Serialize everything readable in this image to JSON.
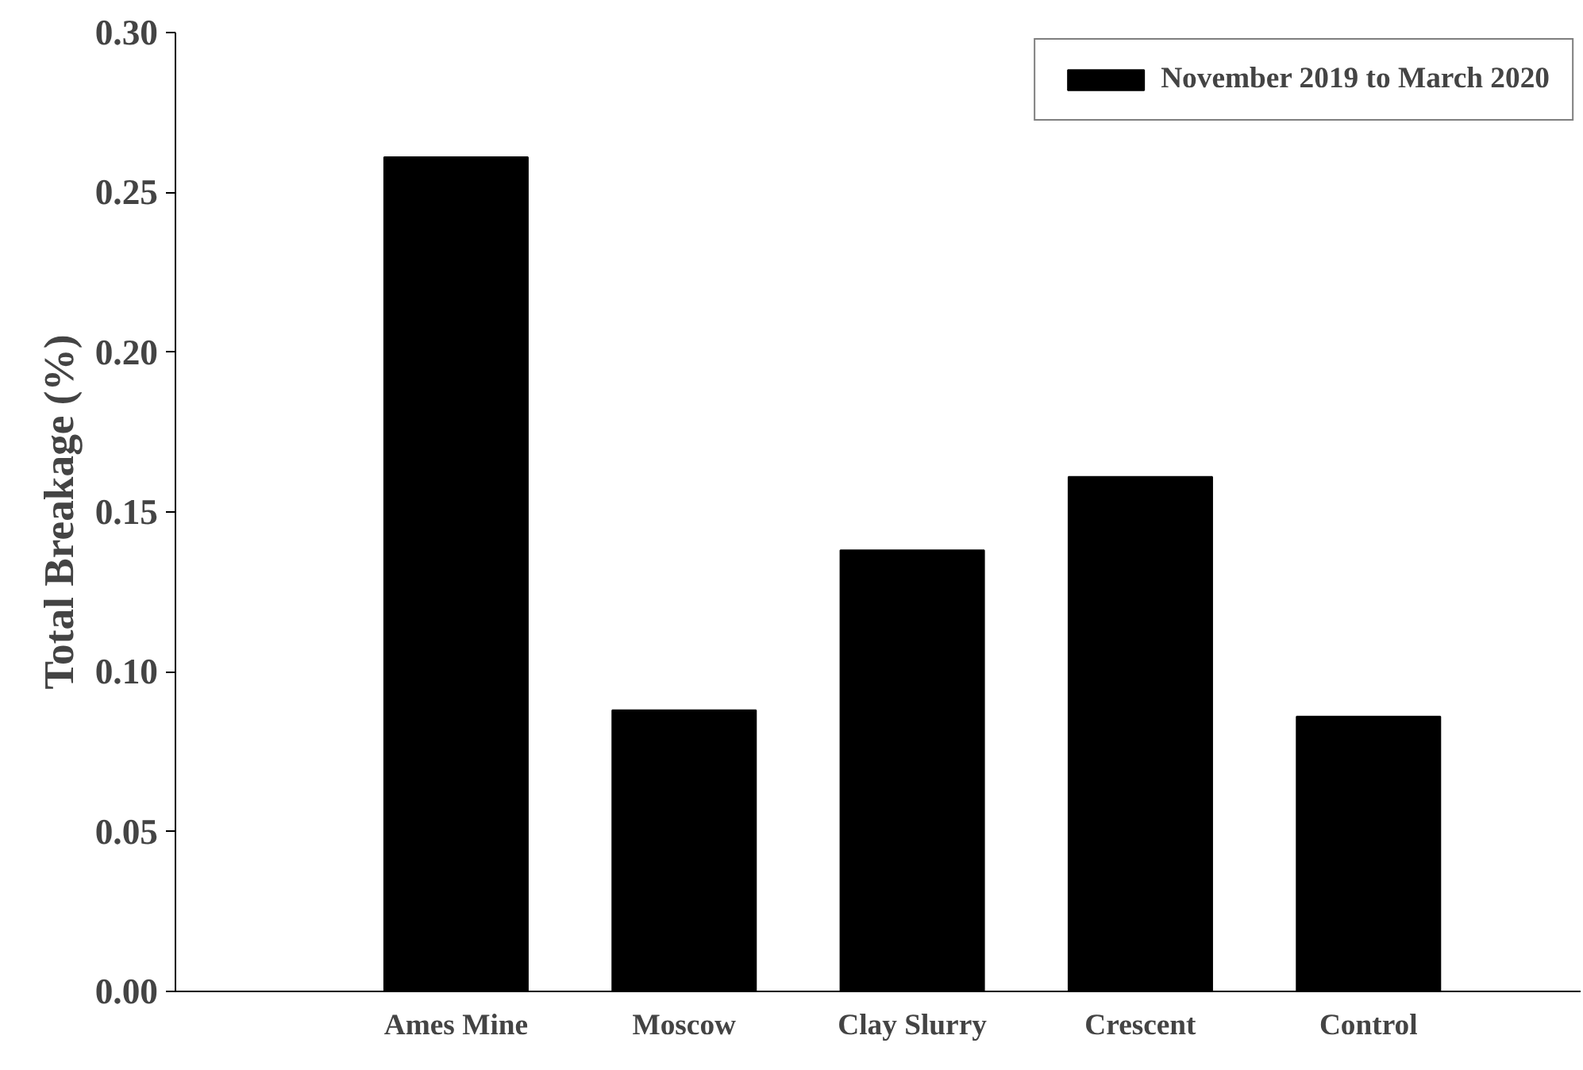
{
  "chart_data": {
    "type": "bar",
    "ylabel": "Total Breakage (%)",
    "categories": [
      "Ames Mine",
      "Moscow",
      "Clay Slurry",
      "Crescent",
      "Control"
    ],
    "series": [
      {
        "name": "November 2019 to March 2020",
        "color": "#000000",
        "values": [
          0.261,
          0.088,
          0.138,
          0.161,
          0.086
        ]
      }
    ],
    "ylim": [
      0,
      0.3
    ],
    "yticks": [
      {
        "value": 0,
        "label": "0.00"
      },
      {
        "value": 0.05,
        "label": "0.05"
      },
      {
        "value": 0.1,
        "label": "0.10"
      },
      {
        "value": 0.15,
        "label": "0.15"
      },
      {
        "value": 0.2,
        "label": "0.20"
      },
      {
        "value": 0.25,
        "label": "0.25"
      },
      {
        "value": 0.3,
        "label": "0.30"
      }
    ],
    "grid": false,
    "legend": "top right"
  }
}
